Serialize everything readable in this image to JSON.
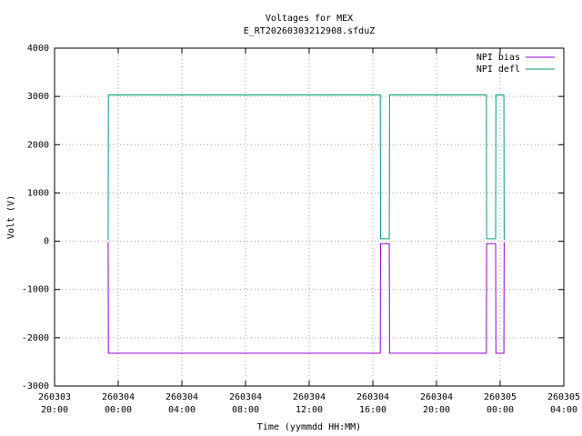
{
  "chart_data": {
    "type": "line",
    "title": "Voltages for MEX",
    "subtitle": "E_RT20260303212908.sfduZ",
    "x_label": "Time (yymmdd HH:MM)",
    "y_label": "Volt (V)",
    "x": [
      "260303 23:22",
      "260303 23:23",
      "260304 16:28",
      "260304 16:29",
      "260304 17:02",
      "260304 17:03",
      "260304 23:08",
      "260304 23:09",
      "260304 23:43",
      "260304 23:44",
      "260305 00:14",
      "260305 00:15"
    ],
    "series": [
      {
        "name": "NPI bias",
        "color": "#9400d3",
        "values": [
          -20,
          -2320,
          -2320,
          -50,
          -50,
          -2320,
          -2320,
          -50,
          -50,
          -2320,
          -2320,
          -20
        ]
      },
      {
        "name": "NPI defl",
        "color": "#009e73",
        "values": [
          20,
          3030,
          3030,
          50,
          50,
          3030,
          3030,
          50,
          50,
          3030,
          3030,
          20
        ]
      }
    ],
    "xlim": [
      "260303 20:00",
      "260305 04:00"
    ],
    "xticks": [
      "260303 20:00",
      "260304 00:00",
      "260304 04:00",
      "260304 08:00",
      "260304 12:00",
      "260304 16:00",
      "260304 20:00",
      "260305 00:00",
      "260305 04:00"
    ],
    "ylim": [
      -3000,
      4000
    ],
    "yticks": [
      -3000,
      -2000,
      -1000,
      0,
      1000,
      2000,
      3000,
      4000
    ],
    "grid": true,
    "legend": "top-right"
  }
}
